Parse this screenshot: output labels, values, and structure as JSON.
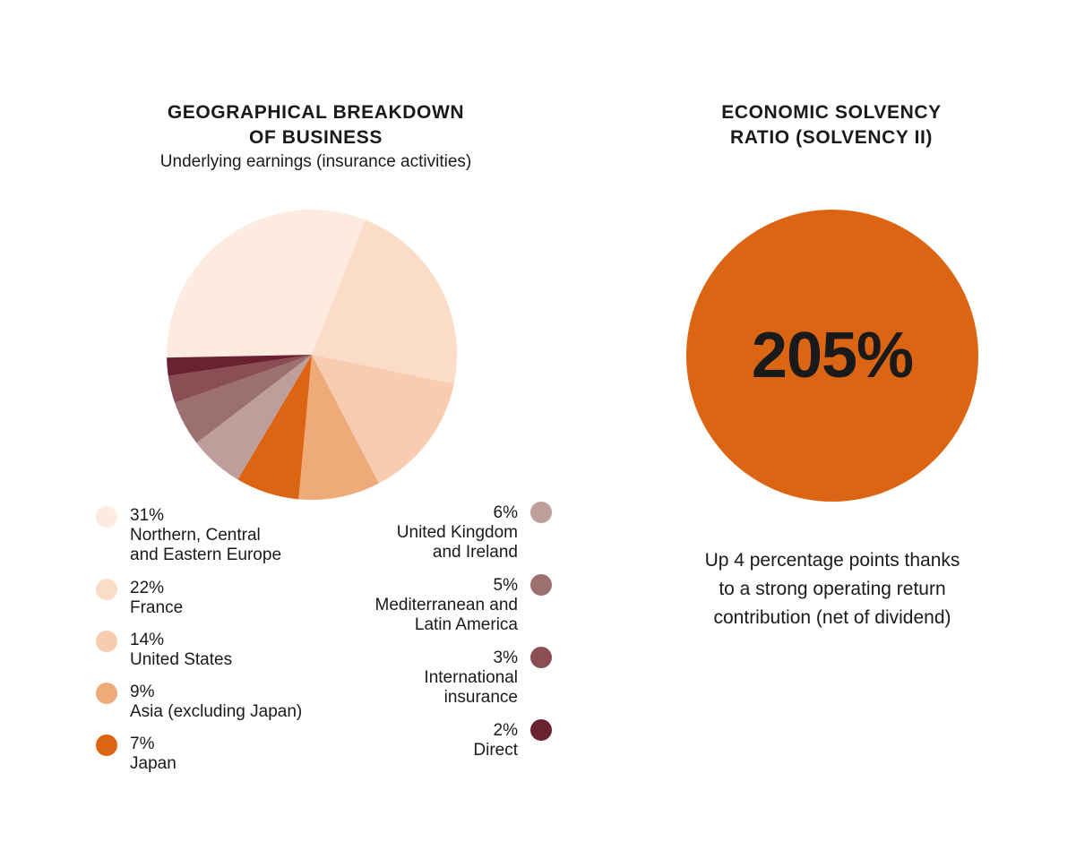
{
  "left_title": [
    "GEOGRAPHICAL BREAKDOWN",
    "OF BUSINESS"
  ],
  "left_subtitle": "Underlying earnings (insurance activities)",
  "right_title": [
    "ECONOMIC SOLVENCY",
    "RATIO (SOLVENCY II)"
  ],
  "solvency": {
    "value_text": "205%",
    "value": 205,
    "note_lines": [
      "Up 4 percentage points thanks",
      "to a strong operating return",
      "contribution (net of dividend)"
    ],
    "color": "#db6513"
  },
  "chart_data": {
    "type": "pie",
    "title": "GEOGRAPHICAL BREAKDOWN OF BUSINESS",
    "subtitle": "Underlying earnings (insurance activities)",
    "slices": [
      {
        "pct_text": "31%",
        "value": 31,
        "label_lines": [
          "Northern, Central",
          "and Eastern Europe"
        ],
        "color": "#fdebe0"
      },
      {
        "pct_text": "22%",
        "value": 22,
        "label_lines": [
          "France"
        ],
        "color": "#fbdcc8"
      },
      {
        "pct_text": "14%",
        "value": 14,
        "label_lines": [
          "United States"
        ],
        "color": "#f8ccb0"
      },
      {
        "pct_text": "9%",
        "value": 9,
        "label_lines": [
          "Asia (excluding Japan)"
        ],
        "color": "#eeaa78"
      },
      {
        "pct_text": "7%",
        "value": 7,
        "label_lines": [
          "Japan"
        ],
        "color": "#db6513"
      },
      {
        "pct_text": "6%",
        "value": 6,
        "label_lines": [
          "United Kingdom",
          "and Ireland"
        ],
        "color": "#bd9e9a"
      },
      {
        "pct_text": "5%",
        "value": 5,
        "label_lines": [
          "Mediterranean and",
          "Latin America"
        ],
        "color": "#9d7070"
      },
      {
        "pct_text": "3%",
        "value": 3,
        "label_lines": [
          "International",
          "insurance"
        ],
        "color": "#8a4e54"
      },
      {
        "pct_text": "2%",
        "value": 2,
        "label_lines": [
          "Direct"
        ],
        "color": "#6a2230"
      }
    ]
  }
}
